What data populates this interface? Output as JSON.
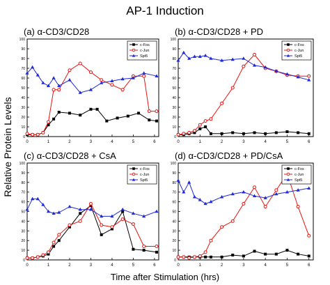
{
  "figure": {
    "title": "AP-1 Induction",
    "ylabel": "Relative Protein Levels",
    "xlabel": "Time after Stimulation (hrs)"
  },
  "colors": {
    "c-Fos": "#000000",
    "c-Jun": "#e8130f",
    "Spt5": "#1f2ad6"
  },
  "chart_data": [
    {
      "type": "line",
      "title": "(a) α-CD3/CD28",
      "xlim": [
        0,
        6.2
      ],
      "ylim": [
        0,
        100
      ],
      "xticks": [
        0,
        1,
        2,
        3,
        4,
        5,
        6
      ],
      "yticks": [
        0,
        10,
        20,
        30,
        40,
        50,
        60,
        70,
        80,
        90,
        100
      ],
      "legend": "top-right",
      "series": [
        {
          "name": "c-Fos",
          "marker": "square",
          "x": [
            0,
            0.25,
            0.5,
            0.75,
            1,
            1.25,
            1.5,
            2,
            2.5,
            3,
            3.3,
            3.75,
            4.25,
            4.75,
            5.25,
            5.75,
            6.1
          ],
          "y": [
            2,
            2,
            2,
            4,
            12,
            18,
            25,
            24,
            22,
            28,
            28,
            16,
            19,
            21,
            24,
            17,
            16
          ]
        },
        {
          "name": "c-Jun",
          "marker": "circle",
          "x": [
            0,
            0.25,
            0.5,
            0.75,
            1,
            1.25,
            1.5,
            2,
            2.5,
            3,
            3.5,
            4,
            4.5,
            5,
            5.5,
            5.75,
            6.1
          ],
          "y": [
            3,
            2,
            2,
            4,
            15,
            48,
            48,
            68,
            75,
            66,
            58,
            53,
            48,
            62,
            62,
            26,
            26
          ]
        },
        {
          "name": "Spt5",
          "marker": "triangle",
          "x": [
            0,
            0.25,
            0.5,
            0.75,
            1,
            1.25,
            1.5,
            2,
            2.5,
            3,
            3.5,
            4,
            4.5,
            5,
            5.5,
            6.1
          ],
          "y": [
            65,
            71,
            63,
            55,
            52,
            60,
            52,
            58,
            45,
            48,
            55,
            57,
            59,
            60,
            65,
            62
          ]
        }
      ]
    },
    {
      "type": "line",
      "title": "(b) α-CD3/CD28 + PD",
      "xlim": [
        0,
        6.2
      ],
      "ylim": [
        0,
        100
      ],
      "xticks": [
        0,
        1,
        2,
        3,
        4,
        5,
        6
      ],
      "yticks": [
        0,
        10,
        20,
        30,
        40,
        50,
        60,
        70,
        80,
        90,
        100
      ],
      "legend": "top-right",
      "series": [
        {
          "name": "c-Fos",
          "marker": "square",
          "x": [
            0,
            0.25,
            0.5,
            0.75,
            1,
            1.25,
            1.5,
            2,
            2.5,
            3,
            3.5,
            4,
            4.5,
            5,
            5.5,
            6
          ],
          "y": [
            2,
            2,
            3,
            4,
            8,
            10,
            3,
            3,
            4,
            3,
            4,
            3,
            4,
            5,
            4,
            3
          ]
        },
        {
          "name": "c-Jun",
          "marker": "circle",
          "x": [
            0,
            0.25,
            0.5,
            0.75,
            1,
            1.25,
            1.5,
            2,
            2.5,
            3,
            3.5,
            4,
            4.5,
            5,
            5.5,
            6
          ],
          "y": [
            2,
            3,
            4,
            6,
            12,
            16,
            18,
            34,
            50,
            72,
            84,
            70,
            67,
            63,
            62,
            62
          ]
        },
        {
          "name": "Spt5",
          "marker": "triangle",
          "x": [
            0,
            0.25,
            0.5,
            0.75,
            1,
            1.25,
            1.5,
            2,
            2.5,
            3,
            3.5,
            4,
            4.5,
            5,
            5.5,
            6
          ],
          "y": [
            78,
            86,
            80,
            82,
            82,
            83,
            80,
            78,
            79,
            80,
            73,
            71,
            67,
            64,
            61,
            58
          ]
        }
      ]
    },
    {
      "type": "line",
      "title": "(c) α-CD3/CD28 + CsA",
      "xlim": [
        0,
        6.2
      ],
      "ylim": [
        0,
        100
      ],
      "xticks": [
        0,
        1,
        2,
        3,
        4,
        5,
        6
      ],
      "yticks": [
        0,
        10,
        20,
        30,
        40,
        50,
        60,
        70,
        80,
        90,
        100
      ],
      "legend": "top-right",
      "series": [
        {
          "name": "c-Fos",
          "marker": "square",
          "x": [
            0,
            0.25,
            0.5,
            0.75,
            1,
            1.25,
            1.5,
            2,
            2.5,
            3,
            3.5,
            4,
            4.5,
            5,
            5.5,
            6.1
          ],
          "y": [
            2,
            2,
            3,
            4,
            6,
            14,
            20,
            34,
            48,
            56,
            26,
            32,
            50,
            11,
            10,
            8
          ]
        },
        {
          "name": "c-Jun",
          "marker": "circle",
          "x": [
            0,
            0.25,
            0.5,
            0.75,
            1,
            1.25,
            1.5,
            2,
            2.5,
            3,
            3.5,
            4,
            4.5,
            5,
            5.5,
            6.1
          ],
          "y": [
            2,
            2,
            3,
            5,
            8,
            18,
            26,
            36,
            40,
            58,
            36,
            34,
            42,
            37,
            14,
            14
          ]
        },
        {
          "name": "Spt5",
          "marker": "triangle",
          "x": [
            0,
            0.25,
            0.5,
            0.75,
            1,
            1.25,
            1.5,
            2,
            2.5,
            3,
            3.5,
            4,
            4.5,
            5,
            5.5,
            6.1
          ],
          "y": [
            52,
            63,
            63,
            57,
            50,
            48,
            49,
            55,
            52,
            52,
            45,
            45,
            52,
            48,
            45,
            50
          ]
        }
      ]
    },
    {
      "type": "line",
      "title": "(d) α-CD3/CD28 + PD/CsA",
      "xlim": [
        0,
        6.2
      ],
      "ylim": [
        0,
        100
      ],
      "xticks": [
        0,
        1,
        2,
        3,
        4,
        5,
        6
      ],
      "yticks": [
        0,
        10,
        20,
        30,
        40,
        50,
        60,
        70,
        80,
        90,
        100
      ],
      "legend": "top-right",
      "series": [
        {
          "name": "c-Fos",
          "marker": "square",
          "x": [
            0,
            0.25,
            0.5,
            0.75,
            1,
            1.25,
            1.5,
            2,
            2.5,
            3,
            3.5,
            4,
            4.5,
            5,
            5.5,
            6
          ],
          "y": [
            3,
            3,
            3,
            3,
            3,
            3,
            3,
            3,
            5,
            4,
            9,
            6,
            6,
            10,
            6,
            4
          ]
        },
        {
          "name": "c-Jun",
          "marker": "circle",
          "x": [
            0,
            0.25,
            0.5,
            0.75,
            1,
            1.25,
            1.5,
            2,
            2.5,
            3,
            3.5,
            4,
            4.5,
            5,
            5.5,
            6
          ],
          "y": [
            3,
            3,
            2,
            3,
            4,
            8,
            20,
            34,
            40,
            58,
            75,
            55,
            72,
            89,
            55,
            25
          ]
        },
        {
          "name": "Spt5",
          "marker": "triangle",
          "x": [
            0,
            0.25,
            0.5,
            0.75,
            1,
            1.25,
            1.5,
            2,
            2.5,
            3,
            3.5,
            4,
            4.5,
            5,
            5.5,
            6
          ],
          "y": [
            82,
            70,
            80,
            65,
            62,
            58,
            60,
            65,
            68,
            70,
            66,
            64,
            68,
            70,
            72,
            74
          ]
        }
      ]
    }
  ]
}
